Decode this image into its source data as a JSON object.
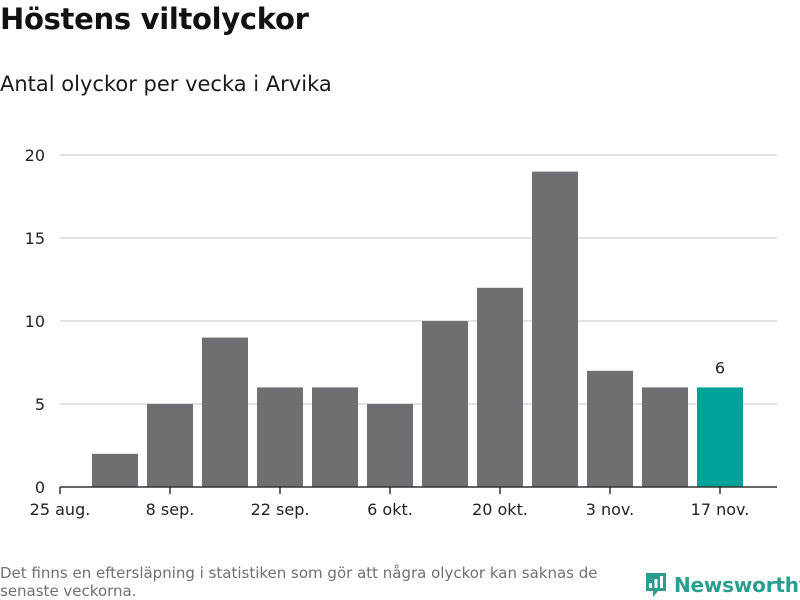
{
  "title": "Höstens viltolyckor",
  "subtitle": "Antal olyckor per vecka i Arvika",
  "footnote": "Det finns en eftersläpning i statistiken som gör att några olyckor kan saknas de senaste veckorna.",
  "brand": {
    "name": "Newsworthy",
    "icon": "newsworthy-logo-icon"
  },
  "colors": {
    "bar": "#6f6e73",
    "highlight": "#00a39a",
    "grid": "#d9d9d9",
    "axis": "#333333",
    "brand": "#2a9d8f"
  },
  "chart_data": {
    "type": "bar",
    "title": "Höstens viltolyckor",
    "subtitle": "Antal olyckor per vecka i Arvika",
    "xlabel": "",
    "ylabel": "",
    "ylim": [
      0,
      20
    ],
    "yticks": [
      0,
      5,
      10,
      15,
      20
    ],
    "xticks": [
      {
        "label": "25 aug.",
        "at": 0
      },
      {
        "label": "8 sep.",
        "at": 2
      },
      {
        "label": "22 sep.",
        "at": 4
      },
      {
        "label": "6 okt.",
        "at": 6
      },
      {
        "label": "20 okt.",
        "at": 8
      },
      {
        "label": "3 nov.",
        "at": 10
      },
      {
        "label": "17 nov.",
        "at": 12
      }
    ],
    "weeks": [
      1,
      2,
      3,
      4,
      5,
      6,
      7,
      8,
      9,
      10,
      11,
      12
    ],
    "values": [
      2,
      5,
      9,
      6,
      6,
      5,
      10,
      12,
      19,
      7,
      6,
      6
    ],
    "highlight_index": 11,
    "data_labels": [
      {
        "index": 11,
        "text": "6"
      }
    ],
    "grid": true
  }
}
